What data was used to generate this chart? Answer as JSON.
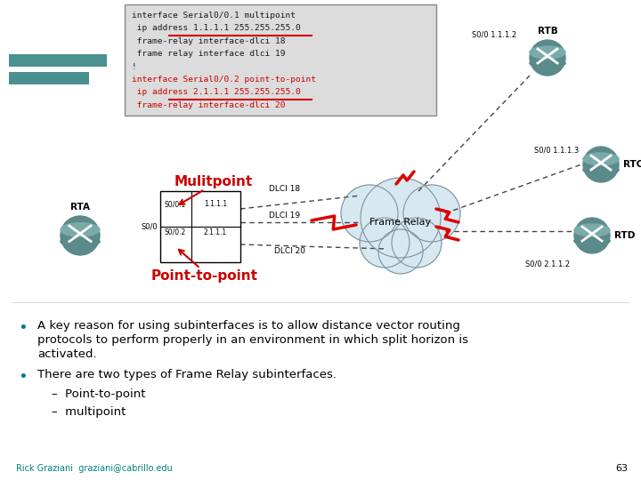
{
  "background_color": "#ffffff",
  "code_lines": [
    [
      "interface Serial0/0.1 multipoint",
      false
    ],
    [
      " ip address 1.1.1.1 255.255.255.0",
      false
    ],
    [
      " frame-relay interface-dlci 18",
      false
    ],
    [
      " frame relay interface dlci 19",
      false
    ],
    [
      "!",
      false
    ],
    [
      "interface Serial0/0.2 point-to-point",
      true
    ],
    [
      " ip address 2.1.1.1 255.255.255.0",
      true
    ],
    [
      " frame-relay interface-dlci 20",
      true
    ]
  ],
  "underline_line1": 1,
  "underline_line2": 6,
  "bullet_color": "#008080",
  "bullet1_line1": "A key reason for using subinterfaces is to allow distance vector routing",
  "bullet1_line2": "protocols to perform properly in an environment in which split horizon is",
  "bullet1_line3": "activated.",
  "bullet2": "There are two types of Frame Relay subinterfaces.",
  "sub1": "Point-to-point",
  "sub2": "multipoint",
  "footer_text": "Rick Graziani  graziani@cabrillo.edu",
  "footer_color": "#008080",
  "page_num": "63",
  "mulitpoint_label": "Mulitpoint",
  "ptp_label": "Point-to-point",
  "label_color": "#cc0000",
  "router_color": "#5b8a8a",
  "cloud_color": "#d8e8f0",
  "cloud_outline": "#8090a0"
}
